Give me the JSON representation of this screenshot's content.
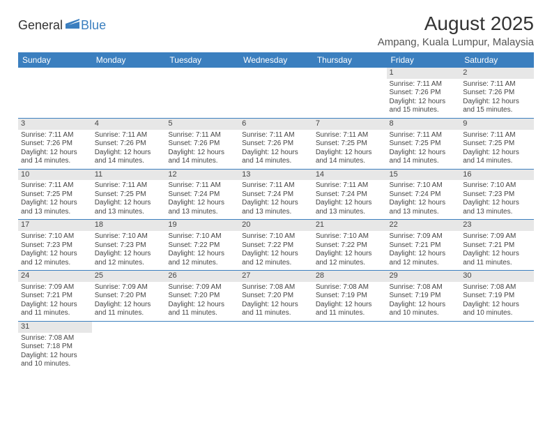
{
  "brand": {
    "part1": "General",
    "part2": "Blue",
    "accent": "#3b7fbf"
  },
  "title": "August 2025",
  "location": "Ampang, Kuala Lumpur, Malaysia",
  "colors": {
    "header_bg": "#3b7fbf",
    "header_text": "#ffffff",
    "daynum_bg": "#e7e7e7",
    "border": "#3b7fbf",
    "text": "#444444",
    "page_bg": "#ffffff"
  },
  "weekdays": [
    "Sunday",
    "Monday",
    "Tuesday",
    "Wednesday",
    "Thursday",
    "Friday",
    "Saturday"
  ],
  "weeks": [
    [
      null,
      null,
      null,
      null,
      null,
      {
        "n": "1",
        "sr": "7:11 AM",
        "ss": "7:26 PM",
        "dl": "12 hours and 15 minutes."
      },
      {
        "n": "2",
        "sr": "7:11 AM",
        "ss": "7:26 PM",
        "dl": "12 hours and 15 minutes."
      }
    ],
    [
      {
        "n": "3",
        "sr": "7:11 AM",
        "ss": "7:26 PM",
        "dl": "12 hours and 14 minutes."
      },
      {
        "n": "4",
        "sr": "7:11 AM",
        "ss": "7:26 PM",
        "dl": "12 hours and 14 minutes."
      },
      {
        "n": "5",
        "sr": "7:11 AM",
        "ss": "7:26 PM",
        "dl": "12 hours and 14 minutes."
      },
      {
        "n": "6",
        "sr": "7:11 AM",
        "ss": "7:26 PM",
        "dl": "12 hours and 14 minutes."
      },
      {
        "n": "7",
        "sr": "7:11 AM",
        "ss": "7:25 PM",
        "dl": "12 hours and 14 minutes."
      },
      {
        "n": "8",
        "sr": "7:11 AM",
        "ss": "7:25 PM",
        "dl": "12 hours and 14 minutes."
      },
      {
        "n": "9",
        "sr": "7:11 AM",
        "ss": "7:25 PM",
        "dl": "12 hours and 14 minutes."
      }
    ],
    [
      {
        "n": "10",
        "sr": "7:11 AM",
        "ss": "7:25 PM",
        "dl": "12 hours and 13 minutes."
      },
      {
        "n": "11",
        "sr": "7:11 AM",
        "ss": "7:25 PM",
        "dl": "12 hours and 13 minutes."
      },
      {
        "n": "12",
        "sr": "7:11 AM",
        "ss": "7:24 PM",
        "dl": "12 hours and 13 minutes."
      },
      {
        "n": "13",
        "sr": "7:11 AM",
        "ss": "7:24 PM",
        "dl": "12 hours and 13 minutes."
      },
      {
        "n": "14",
        "sr": "7:11 AM",
        "ss": "7:24 PM",
        "dl": "12 hours and 13 minutes."
      },
      {
        "n": "15",
        "sr": "7:10 AM",
        "ss": "7:24 PM",
        "dl": "12 hours and 13 minutes."
      },
      {
        "n": "16",
        "sr": "7:10 AM",
        "ss": "7:23 PM",
        "dl": "12 hours and 13 minutes."
      }
    ],
    [
      {
        "n": "17",
        "sr": "7:10 AM",
        "ss": "7:23 PM",
        "dl": "12 hours and 12 minutes."
      },
      {
        "n": "18",
        "sr": "7:10 AM",
        "ss": "7:23 PM",
        "dl": "12 hours and 12 minutes."
      },
      {
        "n": "19",
        "sr": "7:10 AM",
        "ss": "7:22 PM",
        "dl": "12 hours and 12 minutes."
      },
      {
        "n": "20",
        "sr": "7:10 AM",
        "ss": "7:22 PM",
        "dl": "12 hours and 12 minutes."
      },
      {
        "n": "21",
        "sr": "7:10 AM",
        "ss": "7:22 PM",
        "dl": "12 hours and 12 minutes."
      },
      {
        "n": "22",
        "sr": "7:09 AM",
        "ss": "7:21 PM",
        "dl": "12 hours and 12 minutes."
      },
      {
        "n": "23",
        "sr": "7:09 AM",
        "ss": "7:21 PM",
        "dl": "12 hours and 11 minutes."
      }
    ],
    [
      {
        "n": "24",
        "sr": "7:09 AM",
        "ss": "7:21 PM",
        "dl": "12 hours and 11 minutes."
      },
      {
        "n": "25",
        "sr": "7:09 AM",
        "ss": "7:20 PM",
        "dl": "12 hours and 11 minutes."
      },
      {
        "n": "26",
        "sr": "7:09 AM",
        "ss": "7:20 PM",
        "dl": "12 hours and 11 minutes."
      },
      {
        "n": "27",
        "sr": "7:08 AM",
        "ss": "7:20 PM",
        "dl": "12 hours and 11 minutes."
      },
      {
        "n": "28",
        "sr": "7:08 AM",
        "ss": "7:19 PM",
        "dl": "12 hours and 11 minutes."
      },
      {
        "n": "29",
        "sr": "7:08 AM",
        "ss": "7:19 PM",
        "dl": "12 hours and 10 minutes."
      },
      {
        "n": "30",
        "sr": "7:08 AM",
        "ss": "7:19 PM",
        "dl": "12 hours and 10 minutes."
      }
    ],
    [
      {
        "n": "31",
        "sr": "7:08 AM",
        "ss": "7:18 PM",
        "dl": "12 hours and 10 minutes."
      },
      null,
      null,
      null,
      null,
      null,
      null
    ]
  ],
  "labels": {
    "sunrise": "Sunrise:",
    "sunset": "Sunset:",
    "daylight": "Daylight:"
  }
}
